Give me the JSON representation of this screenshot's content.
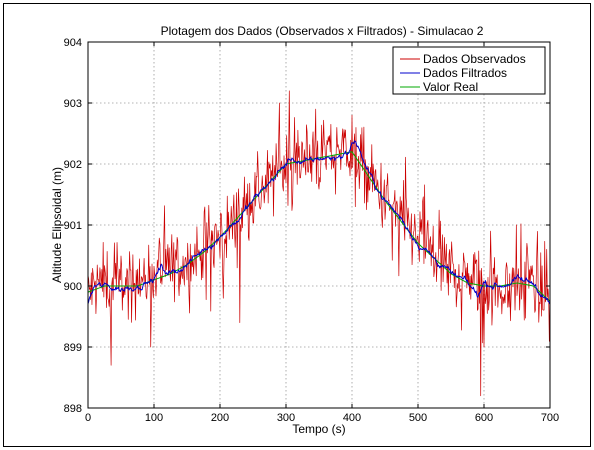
{
  "chart_data": {
    "type": "line",
    "title": "Plotagem dos Dados (Observados x Filtrados) - Simulacao 2",
    "xlabel": "Tempo (s)",
    "ylabel": "Altitude Elipsoidal (m)",
    "xlim": [
      0,
      700
    ],
    "ylim": [
      898,
      904
    ],
    "xticks": [
      0,
      100,
      200,
      300,
      400,
      500,
      600,
      700
    ],
    "yticks": [
      898,
      899,
      900,
      901,
      902,
      903,
      904
    ],
    "grid": true,
    "legend_position": "top-right",
    "series": [
      {
        "name": "Dados Observados",
        "color": "#cc0000",
        "style": "noisy",
        "x": [
          0,
          25,
          50,
          75,
          100,
          125,
          150,
          175,
          200,
          225,
          250,
          275,
          300,
          325,
          350,
          375,
          400,
          425,
          450,
          475,
          500,
          525,
          550,
          575,
          600,
          625,
          650,
          675,
          700
        ],
        "values": [
          899.9,
          900.1,
          900.0,
          900.1,
          900.2,
          900.3,
          900.4,
          900.6,
          900.8,
          901.1,
          901.4,
          901.7,
          902.0,
          902.1,
          902.1,
          902.2,
          902.3,
          901.8,
          901.4,
          901.1,
          900.8,
          900.5,
          900.3,
          900.1,
          900.0,
          900.0,
          900.1,
          900.0,
          899.7
        ],
        "peak_observations": [
          [
            35,
            898.7
          ],
          [
            95,
            899.0
          ],
          [
            205,
            899.8
          ],
          [
            230,
            899.4
          ],
          [
            290,
            903.0
          ],
          [
            305,
            903.2
          ],
          [
            345,
            902.9
          ],
          [
            400,
            902.8
          ],
          [
            405,
            901.3
          ],
          [
            595,
            898.2
          ],
          [
            600,
            899.0
          ],
          [
            610,
            900.9
          ],
          [
            665,
            900.7
          ],
          [
            695,
            900.6
          ]
        ]
      },
      {
        "name": "Dados Filtrados",
        "color": "#0000cc",
        "style": "smooth-jitter",
        "x": [
          0,
          10,
          25,
          50,
          75,
          100,
          110,
          125,
          150,
          175,
          200,
          215,
          225,
          250,
          275,
          300,
          310,
          325,
          350,
          375,
          395,
          405,
          425,
          450,
          475,
          500,
          525,
          550,
          575,
          590,
          600,
          625,
          650,
          675,
          700
        ],
        "values": [
          899.7,
          900.0,
          900.0,
          899.95,
          900.0,
          900.1,
          900.3,
          900.2,
          900.35,
          900.6,
          900.8,
          901.0,
          901.05,
          901.4,
          901.7,
          902.0,
          902.1,
          902.0,
          902.1,
          902.1,
          902.2,
          902.4,
          901.85,
          901.4,
          901.1,
          900.7,
          900.45,
          900.2,
          900.05,
          899.85,
          900.05,
          900.0,
          900.1,
          900.05,
          899.7
        ]
      },
      {
        "name": "Valor Real",
        "color": "#00aa00",
        "style": "smooth",
        "x": [
          0,
          25,
          50,
          75,
          100,
          125,
          150,
          175,
          200,
          225,
          250,
          275,
          300,
          325,
          350,
          375,
          400,
          425,
          450,
          475,
          500,
          525,
          550,
          575,
          600,
          625,
          650,
          675,
          700
        ],
        "values": [
          899.9,
          900.0,
          900.0,
          900.0,
          900.1,
          900.2,
          900.35,
          900.55,
          900.8,
          901.1,
          901.4,
          901.7,
          902.0,
          902.05,
          902.1,
          902.15,
          902.2,
          901.8,
          901.4,
          901.05,
          900.7,
          900.45,
          900.2,
          900.05,
          900.0,
          900.0,
          900.05,
          900.0,
          899.75
        ]
      }
    ]
  }
}
